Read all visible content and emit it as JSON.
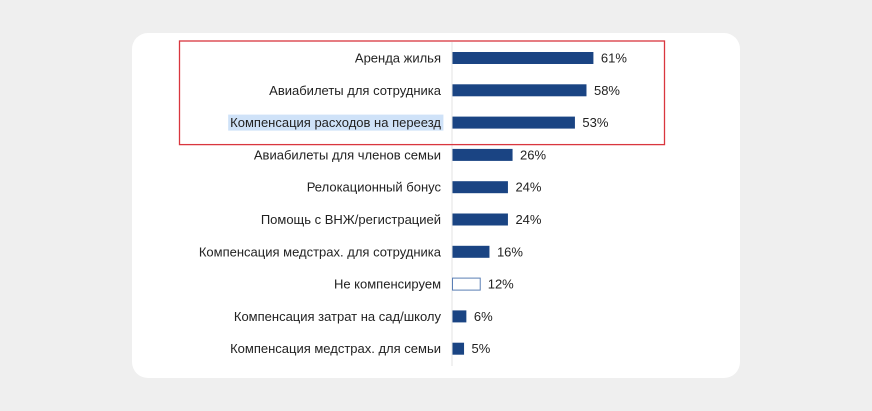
{
  "chart_data": {
    "type": "bar",
    "orientation": "horizontal",
    "categories": [
      "Аренда жилья",
      "Авиабилеты для сотрудника",
      "Компенсация расходов на переезд",
      "Авиабилеты для членов семьи",
      "Релокационный бонус",
      "Помощь с ВНЖ/регистрацией",
      "Компенсация медстрах. для сотрудника",
      "Не компенсируем",
      "Компенсация затрат на сад/школу",
      "Компенсация медстрах. для семьи"
    ],
    "values": [
      61,
      58,
      53,
      26,
      24,
      24,
      16,
      12,
      6,
      5
    ],
    "value_labels": [
      "61%",
      "58%",
      "53%",
      "26%",
      "24%",
      "24%",
      "16%",
      "12%",
      "6%",
      "5%"
    ],
    "unit": "%",
    "xlim": [
      0,
      100
    ],
    "grid": false,
    "colors": {
      "bar": "#1a4483",
      "outline_bar_index": 7,
      "outline": "#5b7fb5",
      "highlight_box": "#d9363e",
      "text_highlight": "#cfe2f8"
    },
    "highlighted_categories": [
      0,
      1,
      2
    ],
    "text_selected_index": 2
  }
}
